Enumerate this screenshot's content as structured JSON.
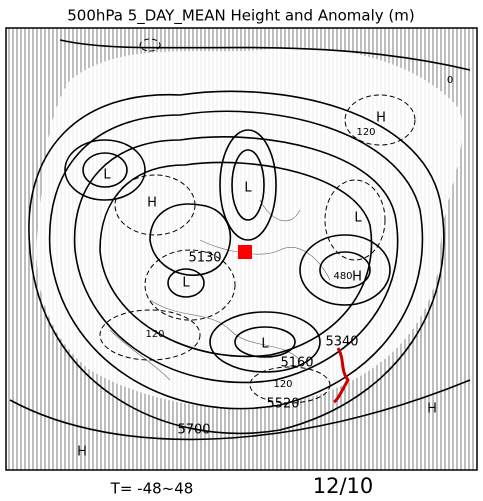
{
  "header": {
    "title": "500hPa  5_DAY_MEAN Height and Anomaly (m)"
  },
  "map": {
    "labels": [
      "5130",
      "5340",
      "5160",
      "5520",
      "5700",
      "H",
      "H",
      "H",
      "H",
      "H",
      "L",
      "L",
      "L",
      "L",
      "L",
      "120",
      "120",
      "120",
      "480",
      "0"
    ]
  },
  "footer": {
    "range": "T= -48~48",
    "date": "12/10"
  }
}
